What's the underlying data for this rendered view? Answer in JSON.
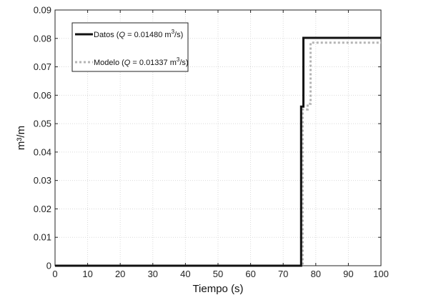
{
  "chart_data": {
    "type": "line",
    "xlabel": "Tiempo (s)",
    "ylabel": "m³/m",
    "xlim": [
      0,
      100
    ],
    "ylim": [
      0,
      0.09
    ],
    "xticks": [
      0,
      10,
      20,
      30,
      40,
      50,
      60,
      70,
      80,
      90,
      100
    ],
    "xtick_labels": [
      "0",
      "10",
      "20",
      "30",
      "40",
      "50",
      "60",
      "70",
      "80",
      "90",
      "100"
    ],
    "yticks": [
      0,
      0.01,
      0.02,
      0.03,
      0.04,
      0.05,
      0.06,
      0.07,
      0.08,
      0.09
    ],
    "ytick_labels": [
      "0",
      "0.01",
      "0.02",
      "0.03",
      "0.04",
      "0.05",
      "0.06",
      "0.07",
      "0.08",
      "0.09"
    ],
    "grid": true,
    "legend_position": "top-left",
    "series": [
      {
        "name": "Datos (Q = 0.01480 m³/s)",
        "legend_prefix": "Datos (",
        "legend_var": "Q",
        "legend_value": " = 0.01480 m",
        "legend_sup": "3",
        "legend_suffix": "/s)",
        "color": "#111111",
        "style": "solid",
        "x": [
          0,
          75.5,
          75.5,
          76.2,
          76.2,
          100
        ],
        "y": [
          0,
          0,
          0.056,
          0.056,
          0.0802,
          0.0802
        ]
      },
      {
        "name": "Modelo (Q = 0.01337 m³/s)",
        "legend_prefix": "Modelo (",
        "legend_var": "Q",
        "legend_value": " = 0.01337 m",
        "legend_sup": "3",
        "legend_suffix": "/s)",
        "color": "#b4b4b4",
        "style": "dotted",
        "x": [
          0,
          76.0,
          76.0,
          77.5,
          77.5,
          78.4,
          78.4,
          100
        ],
        "y": [
          0,
          0,
          0.055,
          0.055,
          0.057,
          0.057,
          0.0785,
          0.0785
        ]
      }
    ]
  }
}
